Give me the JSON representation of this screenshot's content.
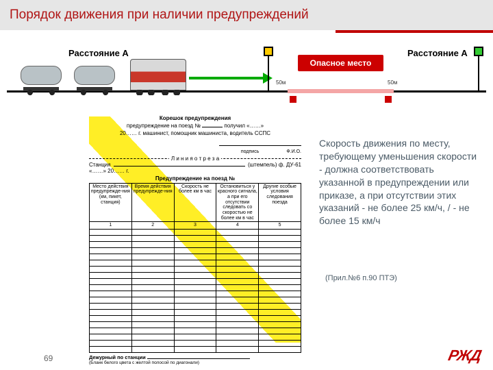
{
  "title": "Порядок движения при наличии предупреждений",
  "diagram": {
    "distance_label": "Расстояние А",
    "danger_label": "Опасное место",
    "marker_50": "50м",
    "signal_yellow_color": "#ffcc00",
    "signal_green_color": "#33cc33",
    "arrow_color": "#00aa00"
  },
  "form": {
    "heading": "Корешок предупреждения",
    "line1a": "предупреждение на поезд №",
    "line1b": "получил «……»",
    "line2": "20…… г. машинист, помощник машиниста, водитель ССПС",
    "sign": "подпись",
    "fio": "Ф.И.О.",
    "cutline": "Л и н и я   о т р е з а",
    "station": "Станция",
    "stamp": "(штемпель) ф. ДУ-61",
    "date2": "«……»",
    "year2": "20…… г.",
    "subheading": "Предупреждение на поезд №",
    "columns": [
      "Место действия предупрежде-ния (км, пикет, станция)",
      "Время действия предупрежде-ния",
      "Скорость не более км в час",
      "Остановиться у красного сигнала, а при его отсутствии следовать со скоростью не более км в час",
      "Другие особые условия следования поезда"
    ],
    "col_nums": [
      "1",
      "2",
      "3",
      "4",
      "5"
    ],
    "blank_rows": 20,
    "footer1": "Дежурный по станции",
    "footer2": "(Бланк белого цвета с желтой полосой по диагонали)"
  },
  "body_text": "Скорость движения по месту, требующему уменьшения скорости - должна соответствовать указанной в предупреждении или приказе, а при отсутствии этих указаний - не более 25 км/ч, / - не более 15 км/ч",
  "reference": "(Прил.№6 п.90  ПТЭ)",
  "page_number": "69",
  "logo": "РЖД",
  "colors": {
    "title_bg": "#e6e6e6",
    "title_fg": "#b01515",
    "accent_red": "#c00000",
    "body_fg": "#4a5a66"
  }
}
